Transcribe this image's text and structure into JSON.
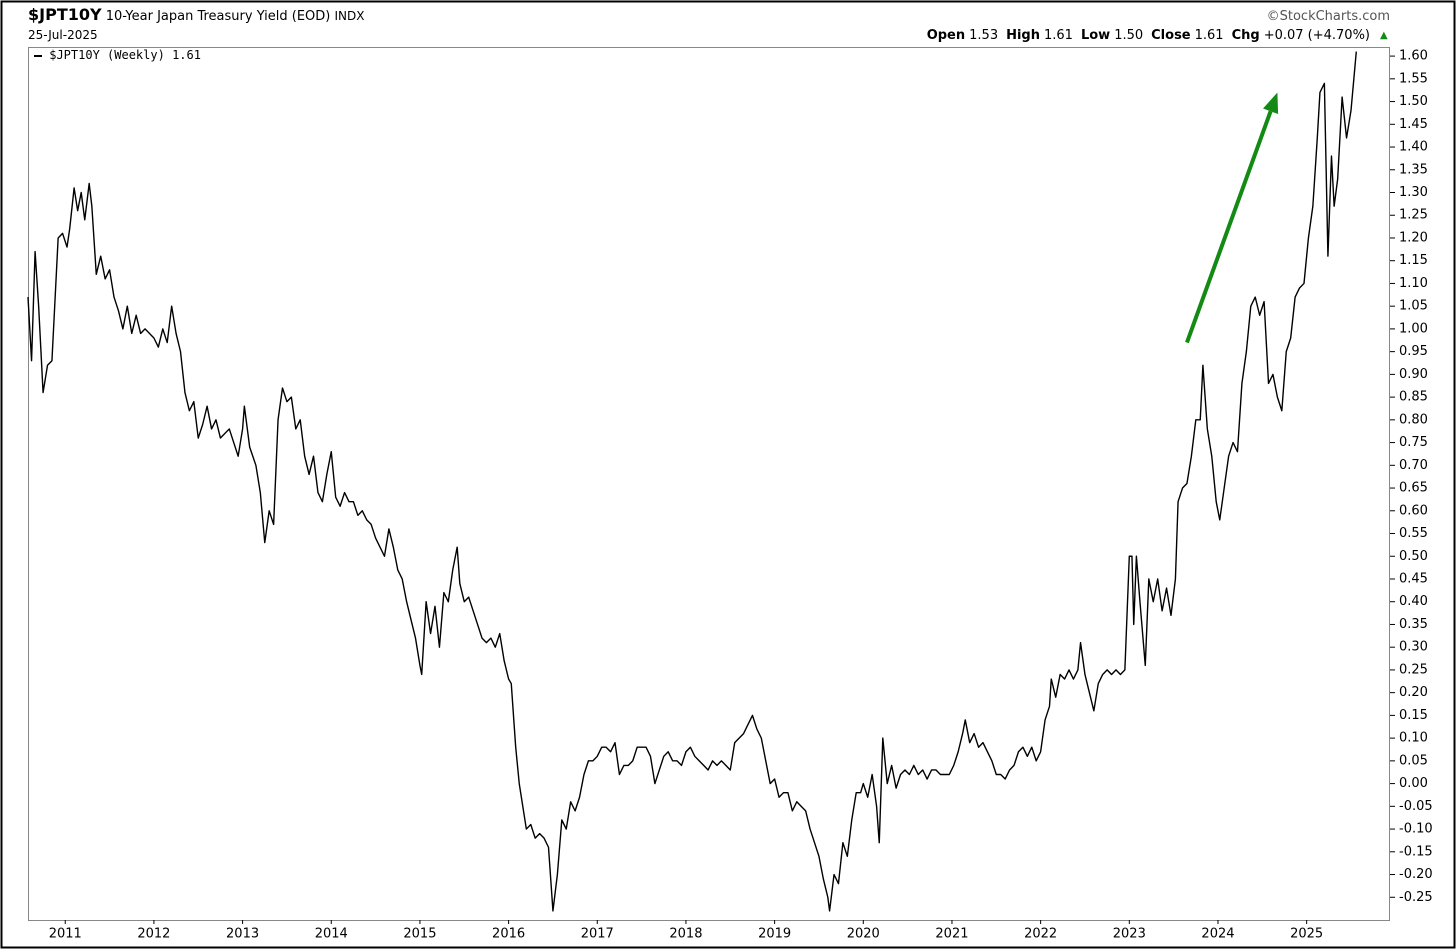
{
  "chart_data": {
    "type": "line",
    "symbol": "$JPT10Y",
    "title": "10-Year Japan Treasury Yield (EOD)",
    "exchange": "INDX",
    "date": "25-Jul-2025",
    "source": "©StockCharts.com",
    "quote": [
      {
        "label": "Open",
        "value": "1.53"
      },
      {
        "label": "High",
        "value": "1.61"
      },
      {
        "label": "Low",
        "value": "1.50"
      },
      {
        "label": "Close",
        "value": "1.61"
      },
      {
        "label": "Chg",
        "value": "+0.07 (+4.70%)"
      }
    ],
    "legend_last": "1.61",
    "x": [
      2010.58,
      2010.62,
      2010.66,
      2010.7,
      2010.75,
      2010.8,
      2010.85,
      2010.92,
      2010.97,
      2011.02,
      2011.05,
      2011.1,
      2011.14,
      2011.18,
      2011.22,
      2011.27,
      2011.3,
      2011.35,
      2011.4,
      2011.45,
      2011.5,
      2011.55,
      2011.6,
      2011.65,
      2011.7,
      2011.75,
      2011.8,
      2011.85,
      2011.9,
      2012.0,
      2012.05,
      2012.1,
      2012.15,
      2012.2,
      2012.25,
      2012.3,
      2012.35,
      2012.4,
      2012.45,
      2012.5,
      2012.55,
      2012.6,
      2012.65,
      2012.7,
      2012.75,
      2012.85,
      2012.95,
      2013.0,
      2013.02,
      2013.08,
      2013.15,
      2013.2,
      2013.25,
      2013.3,
      2013.35,
      2013.4,
      2013.45,
      2013.5,
      2013.55,
      2013.6,
      2013.65,
      2013.7,
      2013.75,
      2013.8,
      2013.85,
      2013.9,
      2013.95,
      2014.0,
      2014.05,
      2014.1,
      2014.15,
      2014.2,
      2014.25,
      2014.3,
      2014.35,
      2014.4,
      2014.45,
      2014.5,
      2014.55,
      2014.6,
      2014.65,
      2014.7,
      2014.75,
      2014.8,
      2014.85,
      2014.9,
      2014.95,
      2015.0,
      2015.02,
      2015.07,
      2015.12,
      2015.17,
      2015.22,
      2015.27,
      2015.32,
      2015.37,
      2015.42,
      2015.45,
      2015.5,
      2015.55,
      2015.6,
      2015.65,
      2015.7,
      2015.75,
      2015.8,
      2015.85,
      2015.9,
      2015.95,
      2016.0,
      2016.03,
      2016.08,
      2016.12,
      2016.16,
      2016.2,
      2016.25,
      2016.3,
      2016.35,
      2016.4,
      2016.45,
      2016.5,
      2016.55,
      2016.6,
      2016.65,
      2016.7,
      2016.75,
      2016.8,
      2016.85,
      2016.9,
      2016.95,
      2017.0,
      2017.05,
      2017.1,
      2017.15,
      2017.2,
      2017.25,
      2017.3,
      2017.35,
      2017.4,
      2017.45,
      2017.5,
      2017.55,
      2017.6,
      2017.65,
      2017.7,
      2017.75,
      2017.8,
      2017.85,
      2017.9,
      2017.95,
      2018.0,
      2018.05,
      2018.1,
      2018.15,
      2018.2,
      2018.25,
      2018.3,
      2018.35,
      2018.4,
      2018.45,
      2018.5,
      2018.55,
      2018.6,
      2018.65,
      2018.7,
      2018.75,
      2018.8,
      2018.85,
      2018.9,
      2018.95,
      2019.0,
      2019.05,
      2019.1,
      2019.15,
      2019.2,
      2019.25,
      2019.3,
      2019.35,
      2019.4,
      2019.45,
      2019.5,
      2019.55,
      2019.6,
      2019.62,
      2019.67,
      2019.72,
      2019.77,
      2019.82,
      2019.87,
      2019.92,
      2019.97,
      2020.0,
      2020.05,
      2020.1,
      2020.15,
      2020.18,
      2020.22,
      2020.27,
      2020.32,
      2020.37,
      2020.42,
      2020.47,
      2020.52,
      2020.57,
      2020.62,
      2020.67,
      2020.72,
      2020.77,
      2020.82,
      2020.87,
      2020.92,
      2020.97,
      2021.02,
      2021.07,
      2021.12,
      2021.15,
      2021.2,
      2021.25,
      2021.3,
      2021.35,
      2021.4,
      2021.45,
      2021.5,
      2021.55,
      2021.6,
      2021.65,
      2021.7,
      2021.75,
      2021.8,
      2021.85,
      2021.9,
      2021.95,
      2022.0,
      2022.05,
      2022.1,
      2022.12,
      2022.17,
      2022.22,
      2022.27,
      2022.32,
      2022.37,
      2022.42,
      2022.45,
      2022.5,
      2022.55,
      2022.6,
      2022.65,
      2022.7,
      2022.75,
      2022.8,
      2022.85,
      2022.9,
      2022.95,
      2023.0,
      2023.03,
      2023.05,
      2023.08,
      2023.12,
      2023.18,
      2023.22,
      2023.27,
      2023.32,
      2023.37,
      2023.42,
      2023.47,
      2023.52,
      2023.55,
      2023.6,
      2023.65,
      2023.7,
      2023.75,
      2023.8,
      2023.83,
      2023.88,
      2023.93,
      2023.98,
      2024.02,
      2024.07,
      2024.12,
      2024.17,
      2024.22,
      2024.27,
      2024.32,
      2024.37,
      2024.42,
      2024.47,
      2024.52,
      2024.57,
      2024.62,
      2024.67,
      2024.72,
      2024.77,
      2024.82,
      2024.87,
      2024.92,
      2024.97,
      2025.02,
      2025.07,
      2025.12,
      2025.15,
      2025.2,
      2025.24,
      2025.28,
      2025.31,
      2025.35,
      2025.4,
      2025.45,
      2025.5,
      2025.56
    ],
    "series": [
      {
        "name": "$JPT10Y (Weekly)",
        "color": "#000000",
        "values": [
          1.07,
          0.93,
          1.17,
          1.05,
          0.86,
          0.92,
          0.93,
          1.2,
          1.21,
          1.18,
          1.22,
          1.31,
          1.26,
          1.3,
          1.24,
          1.32,
          1.27,
          1.12,
          1.16,
          1.11,
          1.13,
          1.07,
          1.04,
          1.0,
          1.05,
          0.99,
          1.03,
          0.99,
          1.0,
          0.98,
          0.96,
          1.0,
          0.97,
          1.05,
          0.99,
          0.95,
          0.86,
          0.82,
          0.84,
          0.76,
          0.79,
          0.83,
          0.78,
          0.8,
          0.76,
          0.78,
          0.72,
          0.78,
          0.83,
          0.74,
          0.7,
          0.64,
          0.53,
          0.6,
          0.57,
          0.8,
          0.87,
          0.84,
          0.85,
          0.78,
          0.8,
          0.72,
          0.68,
          0.72,
          0.64,
          0.62,
          0.68,
          0.73,
          0.63,
          0.61,
          0.64,
          0.62,
          0.62,
          0.59,
          0.6,
          0.58,
          0.57,
          0.54,
          0.52,
          0.5,
          0.56,
          0.52,
          0.47,
          0.45,
          0.4,
          0.36,
          0.32,
          0.26,
          0.24,
          0.4,
          0.33,
          0.39,
          0.3,
          0.42,
          0.4,
          0.47,
          0.52,
          0.44,
          0.4,
          0.41,
          0.38,
          0.35,
          0.32,
          0.31,
          0.32,
          0.3,
          0.33,
          0.27,
          0.23,
          0.22,
          0.08,
          0.0,
          -0.05,
          -0.1,
          -0.09,
          -0.12,
          -0.11,
          -0.12,
          -0.14,
          -0.28,
          -0.2,
          -0.08,
          -0.1,
          -0.04,
          -0.06,
          -0.03,
          0.02,
          0.05,
          0.05,
          0.06,
          0.08,
          0.08,
          0.07,
          0.09,
          0.02,
          0.04,
          0.04,
          0.05,
          0.08,
          0.08,
          0.08,
          0.06,
          0.0,
          0.03,
          0.06,
          0.07,
          0.05,
          0.05,
          0.04,
          0.07,
          0.08,
          0.06,
          0.05,
          0.04,
          0.03,
          0.05,
          0.04,
          0.05,
          0.04,
          0.03,
          0.09,
          0.1,
          0.11,
          0.13,
          0.15,
          0.12,
          0.1,
          0.05,
          0.0,
          0.01,
          -0.03,
          -0.02,
          -0.02,
          -0.06,
          -0.04,
          -0.05,
          -0.06,
          -0.1,
          -0.13,
          -0.16,
          -0.21,
          -0.25,
          -0.28,
          -0.2,
          -0.22,
          -0.13,
          -0.16,
          -0.08,
          -0.02,
          -0.02,
          0.0,
          -0.03,
          0.02,
          -0.05,
          -0.13,
          0.1,
          0.0,
          0.04,
          -0.01,
          0.02,
          0.03,
          0.02,
          0.04,
          0.02,
          0.03,
          0.01,
          0.03,
          0.03,
          0.02,
          0.02,
          0.02,
          0.04,
          0.07,
          0.11,
          0.14,
          0.09,
          0.11,
          0.08,
          0.09,
          0.07,
          0.05,
          0.02,
          0.02,
          0.01,
          0.03,
          0.04,
          0.07,
          0.08,
          0.06,
          0.08,
          0.05,
          0.07,
          0.14,
          0.17,
          0.23,
          0.19,
          0.24,
          0.23,
          0.25,
          0.23,
          0.25,
          0.31,
          0.24,
          0.2,
          0.16,
          0.22,
          0.24,
          0.25,
          0.24,
          0.25,
          0.24,
          0.25,
          0.5,
          0.5,
          0.35,
          0.5,
          0.4,
          0.26,
          0.45,
          0.4,
          0.45,
          0.38,
          0.43,
          0.37,
          0.45,
          0.62,
          0.65,
          0.66,
          0.72,
          0.8,
          0.8,
          0.92,
          0.78,
          0.72,
          0.62,
          0.58,
          0.65,
          0.72,
          0.75,
          0.73,
          0.88,
          0.95,
          1.05,
          1.07,
          1.03,
          1.06,
          0.88,
          0.9,
          0.85,
          0.82,
          0.95,
          0.98,
          1.07,
          1.09,
          1.1,
          1.2,
          1.27,
          1.42,
          1.52,
          1.54,
          1.16,
          1.38,
          1.27,
          1.33,
          1.51,
          1.42,
          1.48,
          1.61
        ]
      }
    ],
    "xlim": [
      2010.58,
      2025.94
    ],
    "xticks": [
      2011,
      2012,
      2013,
      2014,
      2015,
      2016,
      2017,
      2018,
      2019,
      2020,
      2021,
      2022,
      2023,
      2024,
      2025
    ],
    "ylim": [
      -0.3,
      1.62
    ],
    "yticks": [
      {
        "value": 1.6,
        "label": "1.60"
      },
      {
        "value": 1.55,
        "label": "1.55"
      },
      {
        "value": 1.5,
        "label": "1.50"
      },
      {
        "value": 1.45,
        "label": "1.45"
      },
      {
        "value": 1.4,
        "label": "1.40"
      },
      {
        "value": 1.35,
        "label": "1.35"
      },
      {
        "value": 1.3,
        "label": "1.30"
      },
      {
        "value": 1.25,
        "label": "1.25"
      },
      {
        "value": 1.2,
        "label": "1.20"
      },
      {
        "value": 1.15,
        "label": "1.15"
      },
      {
        "value": 1.1,
        "label": "1.10"
      },
      {
        "value": 1.05,
        "label": "1.05"
      },
      {
        "value": 1.0,
        "label": "1.00"
      },
      {
        "value": 0.95,
        "label": "0.95"
      },
      {
        "value": 0.9,
        "label": "0.90"
      },
      {
        "value": 0.85,
        "label": "0.85"
      },
      {
        "value": 0.8,
        "label": "0.80"
      },
      {
        "value": 0.75,
        "label": "0.75"
      },
      {
        "value": 0.7,
        "label": "0.70"
      },
      {
        "value": 0.65,
        "label": "0.65"
      },
      {
        "value": 0.6,
        "label": "0.60"
      },
      {
        "value": 0.55,
        "label": "0.55"
      },
      {
        "value": 0.5,
        "label": "0.50"
      },
      {
        "value": 0.45,
        "label": "0.45"
      },
      {
        "value": 0.4,
        "label": "0.40"
      },
      {
        "value": 0.35,
        "label": "0.35"
      },
      {
        "value": 0.3,
        "label": "0.30"
      },
      {
        "value": 0.25,
        "label": "0.25"
      },
      {
        "value": 0.2,
        "label": "0.20"
      },
      {
        "value": 0.15,
        "label": "0.15"
      },
      {
        "value": 0.1,
        "label": "0.10"
      },
      {
        "value": 0.05,
        "label": "0.05"
      },
      {
        "value": 0,
        "label": "0.00"
      },
      {
        "value": -0.05,
        "label": "-0.05"
      },
      {
        "value": -0.1,
        "label": "-0.10"
      },
      {
        "value": -0.15,
        "label": "-0.15"
      },
      {
        "value": -0.2,
        "label": "-0.20"
      },
      {
        "value": -0.25,
        "label": "-0.25"
      }
    ],
    "grid": false,
    "annotations": [
      {
        "type": "arrow",
        "color": "#138a13",
        "from": [
          2023.65,
          0.97
        ],
        "to": [
          2024.67,
          1.52
        ]
      }
    ]
  }
}
